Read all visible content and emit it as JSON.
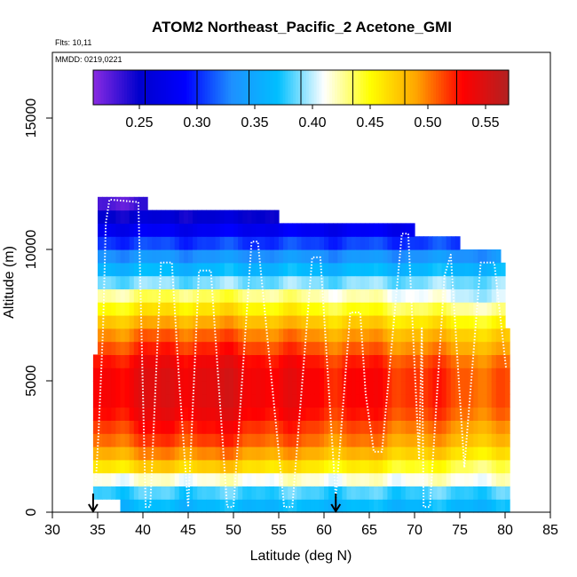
{
  "chart_data": {
    "type": "heatmap",
    "title": "ATOM2 Northeast_Pacific_2 Acetone_GMI",
    "flights_text": "Flts: 10,11",
    "dates_text": "MMDD: 0219,0221",
    "xlabel": "Latitude (deg N)",
    "ylabel": "Altitude (m)",
    "xlim": [
      30,
      85
    ],
    "ylim": [
      0,
      17500
    ],
    "x_ticks": [
      "30",
      "35",
      "40",
      "45",
      "50",
      "55",
      "60",
      "65",
      "70",
      "75",
      "80",
      "85"
    ],
    "y_ticks": [
      "0",
      "5000",
      "10000",
      "15000"
    ],
    "colorbar": {
      "range": [
        0.21,
        0.57
      ],
      "ticks": [
        "0.25",
        "0.30",
        "0.35",
        "0.40",
        "0.45",
        "0.50",
        "0.55"
      ],
      "colors": [
        "#8a2be2",
        "#0000cd",
        "#0000ff",
        "#1e90ff",
        "#00bfff",
        "#ffffff",
        "#ffff00",
        "#ffa500",
        "#ff0000",
        "#b22222"
      ]
    },
    "field": {
      "lat_start": 34.5,
      "lat_end": 80.5,
      "lat_step": 0.5,
      "alt_step": 500,
      "top_profile": [
        {
          "lat": 34.5,
          "alt": 0
        },
        {
          "lat": 35,
          "alt": 11500
        },
        {
          "lat": 36,
          "alt": 12000
        },
        {
          "lat": 40,
          "alt": 12000
        },
        {
          "lat": 40.5,
          "alt": 11500
        },
        {
          "lat": 54.5,
          "alt": 11500
        },
        {
          "lat": 55,
          "alt": 11000
        },
        {
          "lat": 69.5,
          "alt": 11000
        },
        {
          "lat": 70,
          "alt": 10500
        },
        {
          "lat": 74.5,
          "alt": 10500
        },
        {
          "lat": 75,
          "alt": 10000
        },
        {
          "lat": 79.5,
          "alt": 10000
        },
        {
          "lat": 80,
          "alt": 9000
        },
        {
          "lat": 80.5,
          "alt": 5000
        }
      ],
      "bottom_profile": [
        {
          "lat": 34.5,
          "alt": 1000
        },
        {
          "lat": 35.5,
          "alt": 500
        },
        {
          "lat": 37.5,
          "alt": 500
        },
        {
          "lat": 38,
          "alt": 0
        },
        {
          "lat": 80.5,
          "alt": 0
        }
      ],
      "vertical_profile": [
        {
          "alt": 0,
          "value": 0.36
        },
        {
          "alt": 500,
          "value": 0.37
        },
        {
          "alt": 1000,
          "value": 0.39
        },
        {
          "alt": 1500,
          "value": 0.44
        },
        {
          "alt": 2500,
          "value": 0.49
        },
        {
          "alt": 4000,
          "value": 0.525
        },
        {
          "alt": 5500,
          "value": 0.525
        },
        {
          "alt": 7000,
          "value": 0.48
        },
        {
          "alt": 8000,
          "value": 0.43
        },
        {
          "alt": 8750,
          "value": 0.39
        },
        {
          "alt": 9500,
          "value": 0.35
        },
        {
          "alt": 10000,
          "value": 0.32
        },
        {
          "alt": 10750,
          "value": 0.28
        },
        {
          "alt": 11500,
          "value": 0.24
        },
        {
          "alt": 12000,
          "value": 0.22
        }
      ]
    },
    "flight_track": [
      [
        34.8,
        1200
      ],
      [
        35.1,
        3000
      ],
      [
        35.6,
        7000
      ],
      [
        35.9,
        11000
      ],
      [
        36.3,
        11900
      ],
      [
        39.5,
        11800
      ],
      [
        40.3,
        200
      ],
      [
        40.8,
        200
      ],
      [
        42.0,
        9500
      ],
      [
        43.2,
        9500
      ],
      [
        44.0,
        5000
      ],
      [
        45.0,
        200
      ],
      [
        46.2,
        9200
      ],
      [
        47.5,
        9200
      ],
      [
        49.3,
        200
      ],
      [
        50.0,
        200
      ],
      [
        52.0,
        10300
      ],
      [
        52.7,
        10300
      ],
      [
        55.6,
        200
      ],
      [
        56.5,
        200
      ],
      [
        58.7,
        9700
      ],
      [
        59.6,
        9700
      ],
      [
        61.3,
        500
      ],
      [
        62.9,
        7600
      ],
      [
        64.0,
        7600
      ],
      [
        64.6,
        4500
      ],
      [
        65.5,
        2300
      ],
      [
        66.4,
        2300
      ],
      [
        68.6,
        10600
      ],
      [
        69.3,
        10600
      ],
      [
        70.5,
        2000
      ],
      [
        70.8,
        7000
      ],
      [
        71.0,
        200
      ],
      [
        71.7,
        200
      ],
      [
        73.3,
        9000
      ],
      [
        74.0,
        9800
      ],
      [
        75.5,
        1700
      ],
      [
        77.3,
        9500
      ],
      [
        78.8,
        9500
      ],
      [
        80.1,
        5500
      ]
    ],
    "arrows_lat": [
      34.5,
      61.3
    ]
  }
}
